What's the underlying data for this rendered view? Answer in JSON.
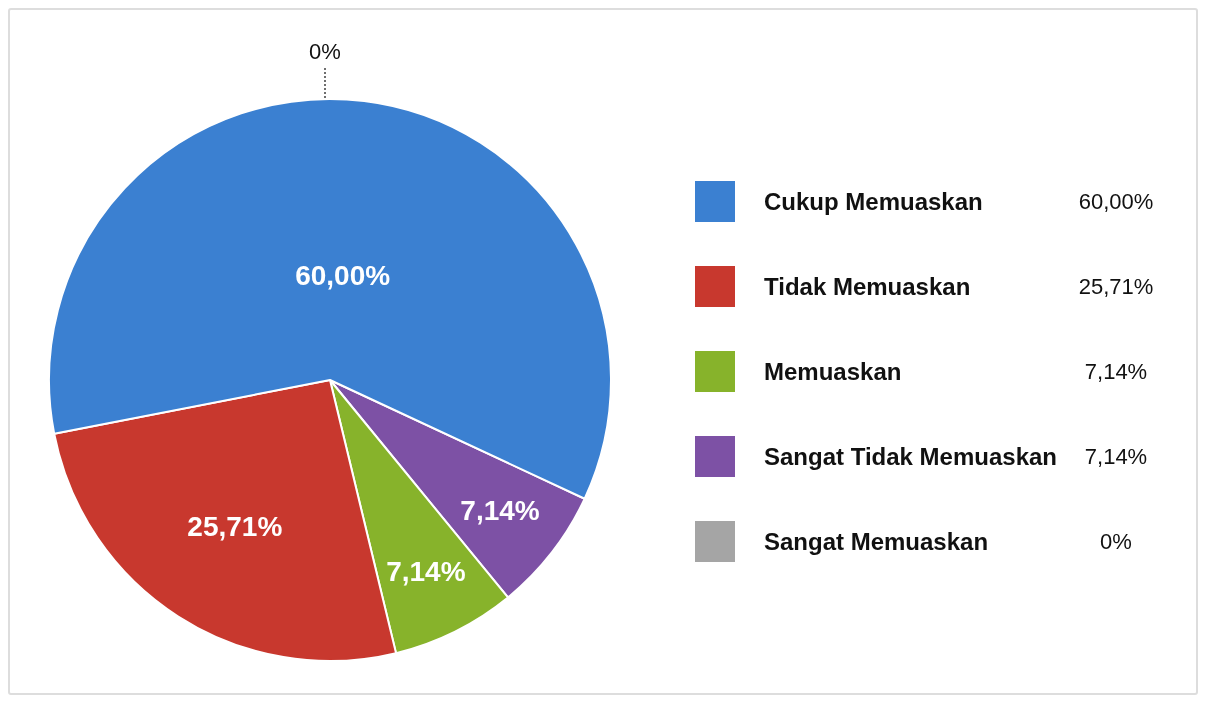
{
  "chart_data": {
    "type": "pie",
    "categories": [
      "Cukup Memuaskan",
      "Tidak Memuaskan",
      "Memuaskan",
      "Sangat Tidak Memuaskan",
      "Sangat Memuaskan"
    ],
    "values": [
      60,
      25.71,
      7.14,
      7.14,
      0
    ],
    "colors": [
      "#3b80d1",
      "#c8382e",
      "#87b32b",
      "#7d51a5",
      "#a5a5a5"
    ],
    "value_labels": [
      "60,00%",
      "25,71%",
      "7,14%",
      "7,14%",
      "0%"
    ],
    "legend": "right"
  }
}
